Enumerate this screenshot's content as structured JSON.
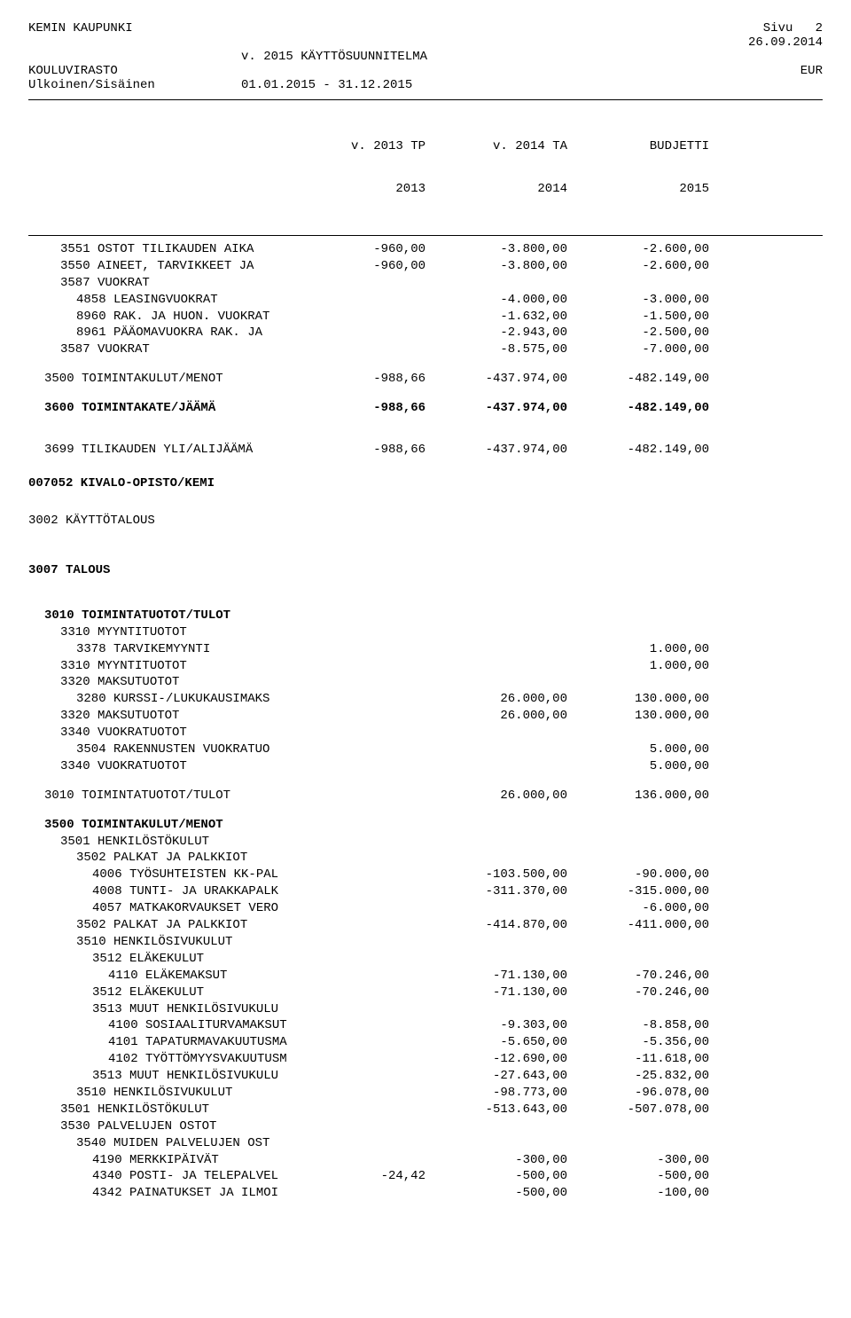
{
  "header": {
    "org": "KEMIN KAUPUNKI",
    "page_label": "Sivu",
    "page_num": "2",
    "date": "26.09.2014",
    "plan_line": "v. 2015 KÄYTTÖSUUNNITELMA",
    "dept": "KOULUVIRASTO",
    "currency": "EUR",
    "scope": "Ulkoinen/Sisäinen",
    "period": "01.01.2015 - 31.12.2015"
  },
  "columns": {
    "c1a": "v. 2013 TP",
    "c1b": "2013",
    "c2a": "v. 2014 TA",
    "c2b": "2014",
    "c3a": "BUDJETTI",
    "c3b": "2015"
  },
  "rows1": [
    {
      "indent": 2,
      "label": "3551 OSTOT TILIKAUDEN AIKA",
      "v1": "-960,00",
      "v2": "-3.800,00",
      "v3": "-2.600,00"
    },
    {
      "indent": 2,
      "label": "3550 AINEET, TARVIKKEET JA",
      "v1": "-960,00",
      "v2": "-3.800,00",
      "v3": "-2.600,00"
    },
    {
      "indent": 2,
      "label": "3587 VUOKRAT",
      "v1": "",
      "v2": "",
      "v3": ""
    },
    {
      "indent": 3,
      "label": "4858 LEASINGVUOKRAT",
      "v1": "",
      "v2": "-4.000,00",
      "v3": "-3.000,00"
    },
    {
      "indent": 3,
      "label": "8960 RAK. JA HUON. VUOKRAT",
      "v1": "",
      "v2": "-1.632,00",
      "v3": "-1.500,00"
    },
    {
      "indent": 3,
      "label": "8961 PÄÄOMAVUOKRA RAK. JA",
      "v1": "",
      "v2": "-2.943,00",
      "v3": "-2.500,00"
    },
    {
      "indent": 2,
      "label": "3587 VUOKRAT",
      "v1": "",
      "v2": "-8.575,00",
      "v3": "-7.000,00"
    }
  ],
  "sum1": {
    "indent": 1,
    "label": "3500 TOIMINTAKULUT/MENOT",
    "v1": "-988,66",
    "v2": "-437.974,00",
    "v3": "-482.149,00"
  },
  "sum2": {
    "indent": 1,
    "label": "3600 TOIMINTAKATE/JÄÄMÄ",
    "v1": "-988,66",
    "v2": "-437.974,00",
    "v3": "-482.149,00",
    "bold": true
  },
  "sum3": {
    "indent": 1,
    "label": "3699 TILIKAUDEN YLI/ALIJÄÄMÄ",
    "v1": "-988,66",
    "v2": "-437.974,00",
    "v3": "-482.149,00"
  },
  "section": {
    "code": "007052 KIVALO-OPISTO/KEMI",
    "sub": "3002 KÄYTTÖTALOUS",
    "talous": "3007 TALOUS"
  },
  "rows2": [
    {
      "indent": 1,
      "label": "3010 TOIMINTATUOTOT/TULOT",
      "v1": "",
      "v2": "",
      "v3": "",
      "bold": true
    },
    {
      "indent": 2,
      "label": "3310 MYYNTITUOTOT",
      "v1": "",
      "v2": "",
      "v3": ""
    },
    {
      "indent": 3,
      "label": "3378 TARVIKEMYYNTI",
      "v1": "",
      "v2": "",
      "v3": "1.000,00"
    },
    {
      "indent": 2,
      "label": "3310 MYYNTITUOTOT",
      "v1": "",
      "v2": "",
      "v3": "1.000,00"
    },
    {
      "indent": 2,
      "label": "3320 MAKSUTUOTOT",
      "v1": "",
      "v2": "",
      "v3": ""
    },
    {
      "indent": 3,
      "label": "3280 KURSSI-/LUKUKAUSIMAKS",
      "v1": "",
      "v2": "26.000,00",
      "v3": "130.000,00"
    },
    {
      "indent": 2,
      "label": "3320 MAKSUTUOTOT",
      "v1": "",
      "v2": "26.000,00",
      "v3": "130.000,00"
    },
    {
      "indent": 2,
      "label": "3340 VUOKRATUOTOT",
      "v1": "",
      "v2": "",
      "v3": ""
    },
    {
      "indent": 3,
      "label": "3504 RAKENNUSTEN VUOKRATUO",
      "v1": "",
      "v2": "",
      "v3": "5.000,00"
    },
    {
      "indent": 2,
      "label": "3340 VUOKRATUOTOT",
      "v1": "",
      "v2": "",
      "v3": "5.000,00"
    }
  ],
  "sum4": {
    "indent": 1,
    "label": "3010 TOIMINTATUOTOT/TULOT",
    "v1": "",
    "v2": "26.000,00",
    "v3": "136.000,00"
  },
  "rows3": [
    {
      "indent": 1,
      "label": "3500 TOIMINTAKULUT/MENOT",
      "v1": "",
      "v2": "",
      "v3": "",
      "bold": true
    },
    {
      "indent": 2,
      "label": "3501 HENKILÖSTÖKULUT",
      "v1": "",
      "v2": "",
      "v3": ""
    },
    {
      "indent": 3,
      "label": "3502 PALKAT JA PALKKIOT",
      "v1": "",
      "v2": "",
      "v3": ""
    },
    {
      "indent": 4,
      "label": "4006 TYÖSUHTEISTEN KK-PAL",
      "v1": "",
      "v2": "-103.500,00",
      "v3": "-90.000,00"
    },
    {
      "indent": 4,
      "label": "4008 TUNTI- JA URAKKAPALK",
      "v1": "",
      "v2": "-311.370,00",
      "v3": "-315.000,00"
    },
    {
      "indent": 4,
      "label": "4057 MATKAKORVAUKSET VERO",
      "v1": "",
      "v2": "",
      "v3": "-6.000,00"
    },
    {
      "indent": 3,
      "label": "3502 PALKAT JA PALKKIOT",
      "v1": "",
      "v2": "-414.870,00",
      "v3": "-411.000,00"
    },
    {
      "indent": 3,
      "label": "3510 HENKILÖSIVUKULUT",
      "v1": "",
      "v2": "",
      "v3": ""
    },
    {
      "indent": 4,
      "label": "3512 ELÄKEKULUT",
      "v1": "",
      "v2": "",
      "v3": ""
    },
    {
      "indent": 5,
      "label": "4110 ELÄKEMAKSUT",
      "v1": "",
      "v2": "-71.130,00",
      "v3": "-70.246,00"
    },
    {
      "indent": 4,
      "label": "3512 ELÄKEKULUT",
      "v1": "",
      "v2": "-71.130,00",
      "v3": "-70.246,00"
    },
    {
      "indent": 4,
      "label": "3513 MUUT HENKILÖSIVUKULU",
      "v1": "",
      "v2": "",
      "v3": ""
    },
    {
      "indent": 5,
      "label": "4100 SOSIAALITURVAMAKSUT",
      "v1": "",
      "v2": "-9.303,00",
      "v3": "-8.858,00"
    },
    {
      "indent": 5,
      "label": "4101 TAPATURMAVAKUUTUSMA",
      "v1": "",
      "v2": "-5.650,00",
      "v3": "-5.356,00"
    },
    {
      "indent": 5,
      "label": "4102 TYÖTTÖMYYSVAKUUTUSM",
      "v1": "",
      "v2": "-12.690,00",
      "v3": "-11.618,00"
    },
    {
      "indent": 4,
      "label": "3513 MUUT HENKILÖSIVUKULU",
      "v1": "",
      "v2": "-27.643,00",
      "v3": "-25.832,00"
    },
    {
      "indent": 3,
      "label": "3510 HENKILÖSIVUKULUT",
      "v1": "",
      "v2": "-98.773,00",
      "v3": "-96.078,00"
    },
    {
      "indent": 2,
      "label": "3501 HENKILÖSTÖKULUT",
      "v1": "",
      "v2": "-513.643,00",
      "v3": "-507.078,00"
    },
    {
      "indent": 2,
      "label": "3530 PALVELUJEN OSTOT",
      "v1": "",
      "v2": "",
      "v3": ""
    },
    {
      "indent": 3,
      "label": "3540 MUIDEN PALVELUJEN OST",
      "v1": "",
      "v2": "",
      "v3": ""
    },
    {
      "indent": 4,
      "label": "4190 MERKKIPÄIVÄT",
      "v1": "",
      "v2": "-300,00",
      "v3": "-300,00"
    },
    {
      "indent": 4,
      "label": "4340 POSTI- JA TELEPALVEL",
      "v1": "-24,42",
      "v2": "-500,00",
      "v3": "-500,00"
    },
    {
      "indent": 4,
      "label": "4342 PAINATUKSET JA ILMOI",
      "v1": "",
      "v2": "-500,00",
      "v3": "-100,00"
    }
  ]
}
